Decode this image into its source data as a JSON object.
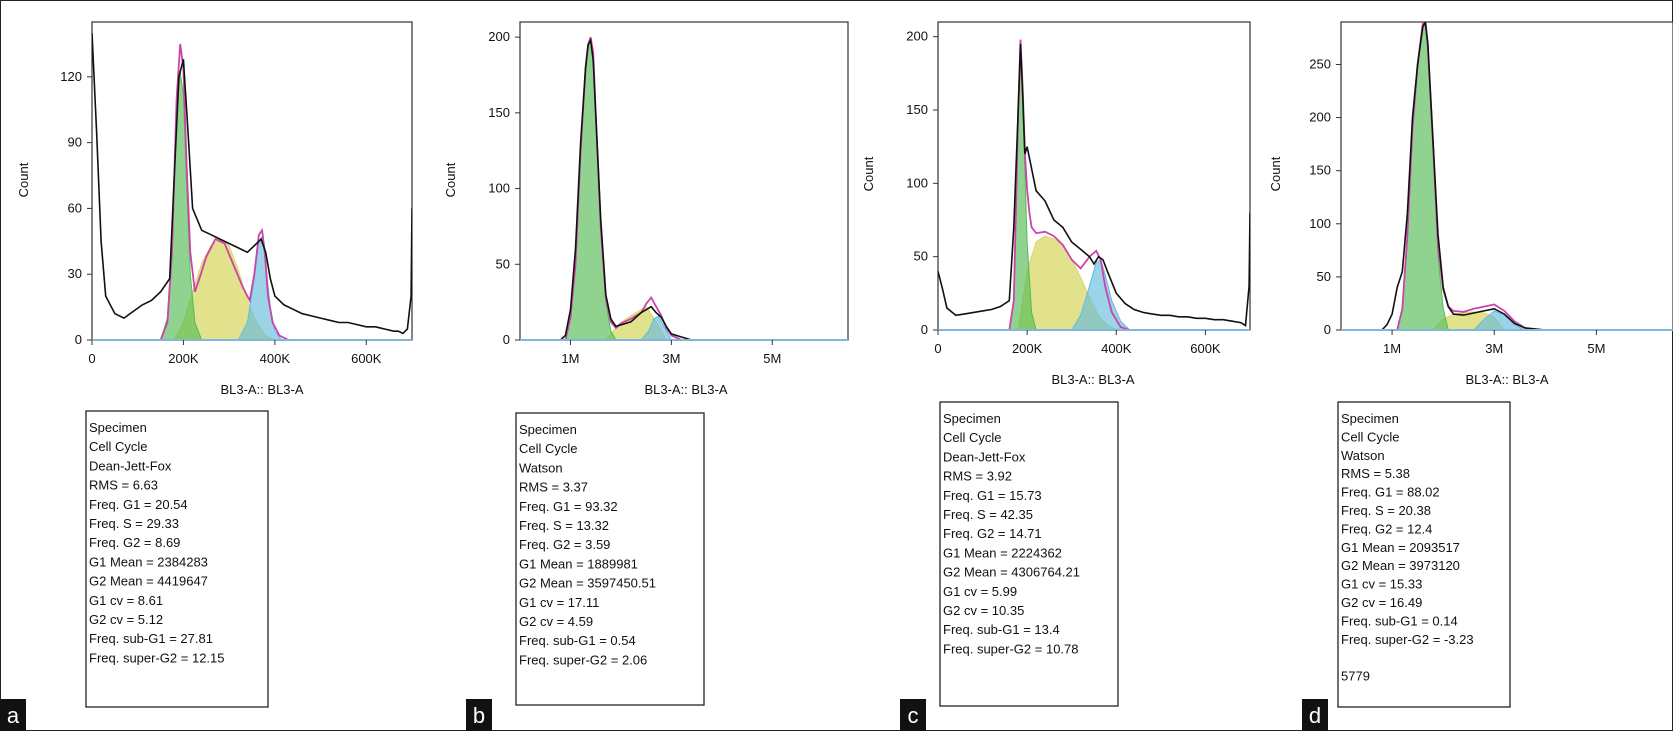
{
  "chart_data": [
    {
      "type": "area",
      "panel_label": "a",
      "xlabel": "BL3-A:: BL3-A",
      "ylabel": "Count",
      "xlim": [
        0,
        700000
      ],
      "ylim": [
        0,
        145
      ],
      "x_ticks": [
        0,
        200000,
        400000,
        600000
      ],
      "x_tick_labels": [
        "0",
        "200K",
        "400K",
        "600K"
      ],
      "y_ticks": [
        0,
        30,
        60,
        90,
        120
      ],
      "y_tick_labels": [
        "0",
        "30",
        "60",
        "90",
        "120"
      ],
      "series": [
        {
          "name": "data",
          "color": "#111111",
          "x": [
            0,
            10000,
            20000,
            30000,
            50000,
            70000,
            90000,
            110000,
            130000,
            150000,
            170000,
            180000,
            190000,
            200000,
            210000,
            220000,
            240000,
            260000,
            280000,
            300000,
            320000,
            340000,
            360000,
            370000,
            380000,
            390000,
            400000,
            420000,
            440000,
            460000,
            480000,
            500000,
            520000,
            540000,
            560000,
            580000,
            600000,
            620000,
            640000,
            660000,
            670000,
            680000,
            690000,
            698000,
            700000
          ],
          "values": [
            140,
            95,
            45,
            20,
            12,
            10,
            13,
            16,
            18,
            22,
            28,
            75,
            120,
            128,
            95,
            60,
            50,
            48,
            46,
            44,
            42,
            40,
            44,
            46,
            40,
            28,
            20,
            16,
            14,
            12,
            11,
            10,
            9,
            8,
            8,
            7,
            6,
            6,
            5,
            4,
            4,
            3,
            5,
            20,
            60
          ]
        },
        {
          "name": "model",
          "color": "#cc44aa",
          "x": [
            150000,
            165000,
            175000,
            185000,
            193000,
            200000,
            207000,
            215000,
            225000,
            235000,
            250000,
            270000,
            290000,
            310000,
            330000,
            345000,
            355000,
            365000,
            372000,
            378000,
            385000,
            395000,
            410000,
            430000
          ],
          "values": [
            0,
            8,
            40,
            110,
            135,
            124,
            80,
            40,
            22,
            28,
            38,
            46,
            44,
            34,
            24,
            18,
            30,
            48,
            50,
            40,
            20,
            8,
            2,
            0
          ]
        },
        {
          "name": "G1",
          "color": "#55bb55",
          "x": [
            150000,
            165000,
            175000,
            185000,
            193000,
            200000,
            207000,
            215000,
            225000,
            240000
          ],
          "values": [
            0,
            10,
            45,
            105,
            122,
            112,
            70,
            30,
            8,
            0
          ]
        },
        {
          "name": "S",
          "color": "#d9d866",
          "x": [
            180000,
            200000,
            220000,
            240000,
            260000,
            280000,
            300000,
            320000,
            340000,
            360000,
            380000,
            400000
          ],
          "values": [
            0,
            8,
            22,
            35,
            43,
            46,
            43,
            32,
            18,
            8,
            2,
            0
          ]
        },
        {
          "name": "G2",
          "color": "#66bbdd",
          "x": [
            320000,
            340000,
            355000,
            365000,
            372000,
            380000,
            390000,
            400000,
            415000
          ],
          "values": [
            0,
            8,
            28,
            45,
            47,
            35,
            15,
            4,
            0
          ]
        }
      ],
      "stats": [
        "Specimen",
        "Cell Cycle",
        "Dean-Jett-Fox",
        "RMS  = 6.63",
        "Freq. G1  = 20.54",
        "Freq. S  = 29.33",
        "Freq. G2  = 8.69",
        "G1 Mean  = 2384283",
        "G2 Mean  = 4419647",
        "G1 cv  = 8.61",
        "G2 cv  = 5.12",
        "Freq. sub-G1  = 27.81",
        "Freq. super-G2 = 12.15"
      ]
    },
    {
      "type": "area",
      "panel_label": "b",
      "xlabel": "BL3-A:: BL3-A",
      "ylabel": "Count",
      "xlim": [
        0,
        6500000
      ],
      "ylim": [
        0,
        210
      ],
      "x_ticks": [
        1000000,
        3000000,
        5000000
      ],
      "x_tick_labels": [
        "1M",
        "3M",
        "5M"
      ],
      "y_ticks": [
        0,
        50,
        100,
        150,
        200
      ],
      "y_tick_labels": [
        "0",
        "50",
        "100",
        "150",
        "200"
      ],
      "series": [
        {
          "name": "data",
          "color": "#111111",
          "x": [
            0,
            800000,
            900000,
            1000000,
            1100000,
            1200000,
            1300000,
            1350000,
            1400000,
            1450000,
            1500000,
            1600000,
            1700000,
            1800000,
            1900000,
            2000000,
            2200000,
            2400000,
            2600000,
            2700000,
            2800000,
            2900000,
            3000000,
            3200000,
            3400000,
            6500000
          ],
          "values": [
            0,
            0,
            3,
            20,
            60,
            130,
            180,
            195,
            198,
            185,
            150,
            80,
            30,
            14,
            9,
            10,
            12,
            18,
            22,
            18,
            15,
            9,
            4,
            2,
            0,
            0
          ]
        },
        {
          "name": "model",
          "color": "#cc44aa",
          "x": [
            900000,
            1000000,
            1100000,
            1200000,
            1300000,
            1350000,
            1400000,
            1450000,
            1500000,
            1600000,
            1700000,
            1800000,
            1900000,
            2000000,
            2200000,
            2400000,
            2500000,
            2600000,
            2700000,
            2800000,
            2900000,
            3000000,
            3200000
          ],
          "values": [
            0,
            15,
            50,
            125,
            180,
            195,
            200,
            190,
            150,
            75,
            28,
            12,
            8,
            11,
            14,
            18,
            24,
            28,
            22,
            16,
            8,
            3,
            0
          ]
        },
        {
          "name": "G1",
          "color": "#55bb55",
          "x": [
            900000,
            1000000,
            1100000,
            1200000,
            1300000,
            1350000,
            1400000,
            1450000,
            1500000,
            1600000,
            1700000,
            1800000,
            1900000
          ],
          "values": [
            0,
            14,
            48,
            122,
            178,
            193,
            198,
            188,
            148,
            72,
            25,
            6,
            0
          ]
        },
        {
          "name": "S",
          "color": "#d9d866",
          "x": [
            1700000,
            1900000,
            2100000,
            2300000,
            2500000,
            2700000,
            2900000
          ],
          "values": [
            0,
            8,
            14,
            18,
            22,
            12,
            0
          ]
        },
        {
          "name": "G2",
          "color": "#66bbdd",
          "x": [
            2400000,
            2550000,
            2650000,
            2750000,
            2850000,
            3000000
          ],
          "values": [
            0,
            6,
            14,
            16,
            9,
            0
          ]
        }
      ],
      "stats": [
        "Specimen",
        "Cell Cycle",
        "Watson",
        "RMS  = 3.37",
        "Freq. G1  = 93.32",
        "Freq. S = 13.32",
        "Freq. G2  = 3.59",
        "G1 Mean  = 1889981",
        "G2 Mean  = 3597450.51",
        "G1 cv  = 17.11",
        "G2 cv  = 4.59",
        "Freq. sub-G1  = 0.54",
        "Freq. super-G2 = 2.06"
      ]
    },
    {
      "type": "area",
      "panel_label": "c",
      "xlabel": "BL3-A:: BL3-A",
      "ylabel": "Count",
      "xlim": [
        0,
        700000
      ],
      "ylim": [
        0,
        210
      ],
      "x_ticks": [
        0,
        200000,
        400000,
        600000
      ],
      "x_tick_labels": [
        "0",
        "200K",
        "400K",
        "600K"
      ],
      "y_ticks": [
        0,
        50,
        100,
        150,
        200
      ],
      "y_tick_labels": [
        "0",
        "50",
        "100",
        "150",
        "200"
      ],
      "series": [
        {
          "name": "data",
          "color": "#111111",
          "x": [
            0,
            10000,
            20000,
            40000,
            60000,
            80000,
            100000,
            120000,
            140000,
            160000,
            170000,
            180000,
            185000,
            190000,
            195000,
            200000,
            210000,
            220000,
            240000,
            260000,
            280000,
            300000,
            320000,
            340000,
            350000,
            360000,
            370000,
            380000,
            400000,
            420000,
            440000,
            460000,
            480000,
            500000,
            520000,
            540000,
            560000,
            580000,
            600000,
            620000,
            640000,
            660000,
            680000,
            690000,
            698000,
            700000
          ],
          "values": [
            40,
            28,
            15,
            10,
            11,
            12,
            13,
            14,
            16,
            20,
            70,
            150,
            195,
            160,
            120,
            125,
            110,
            95,
            88,
            75,
            70,
            60,
            55,
            50,
            45,
            50,
            48,
            40,
            25,
            18,
            14,
            12,
            11,
            10,
            10,
            9,
            9,
            8,
            8,
            7,
            7,
            6,
            5,
            3,
            30,
            80
          ]
        },
        {
          "name": "model",
          "color": "#cc44aa",
          "x": [
            160000,
            170000,
            180000,
            185000,
            190000,
            195000,
            200000,
            205000,
            210000,
            220000,
            240000,
            260000,
            280000,
            300000,
            320000,
            340000,
            355000,
            365000,
            375000,
            390000,
            410000,
            430000
          ],
          "values": [
            0,
            20,
            150,
            198,
            165,
            120,
            96,
            80,
            70,
            66,
            67,
            64,
            58,
            48,
            42,
            50,
            54,
            48,
            30,
            12,
            2,
            0
          ]
        },
        {
          "name": "G1",
          "color": "#55bb55",
          "x": [
            160000,
            170000,
            180000,
            185000,
            190000,
            195000,
            200000,
            210000,
            220000
          ],
          "values": [
            0,
            20,
            145,
            190,
            158,
            110,
            60,
            12,
            0
          ]
        },
        {
          "name": "S",
          "color": "#d9d866",
          "x": [
            180000,
            200000,
            220000,
            240000,
            260000,
            280000,
            300000,
            320000,
            340000,
            360000,
            380000,
            400000
          ],
          "values": [
            0,
            40,
            60,
            64,
            62,
            58,
            48,
            36,
            22,
            10,
            3,
            0
          ]
        },
        {
          "name": "G2",
          "color": "#66bbdd",
          "x": [
            300000,
            320000,
            340000,
            355000,
            365000,
            375000,
            390000,
            410000,
            430000
          ],
          "values": [
            0,
            10,
            30,
            46,
            48,
            38,
            20,
            6,
            0
          ]
        }
      ],
      "stats": [
        "Specimen",
        "Cell Cycle",
        "Dean-Jett-Fox",
        "RMS  = 3.92",
        "Freq. G1  = 15.73",
        "Freq. S  = 42.35",
        "Freq. G2  = 14.71",
        "G1 Mean  = 2224362",
        "G2 Mean  = 4306764.21",
        "G1 cv  = 5.99",
        "G2 cv  = 10.35",
        "Freq. sub-G1  = 13.4",
        "Freq. super-G2  = 10.78"
      ]
    },
    {
      "type": "area",
      "panel_label": "d",
      "xlabel": "BL3-A:: BL3-A",
      "ylabel": "Count",
      "xlim": [
        0,
        6500000
      ],
      "ylim": [
        0,
        290
      ],
      "x_ticks": [
        1000000,
        3000000,
        5000000
      ],
      "x_tick_labels": [
        "1M",
        "3M",
        "5M"
      ],
      "y_ticks": [
        0,
        50,
        100,
        150,
        200,
        250
      ],
      "y_tick_labels": [
        "0",
        "50",
        "100",
        "150",
        "200",
        "250"
      ],
      "series": [
        {
          "name": "data",
          "color": "#111111",
          "x": [
            800000,
            900000,
            1000000,
            1100000,
            1200000,
            1300000,
            1400000,
            1500000,
            1600000,
            1650000,
            1700000,
            1800000,
            1900000,
            2000000,
            2100000,
            2200000,
            2400000,
            2600000,
            2800000,
            3000000,
            3200000,
            3400000,
            3600000,
            3800000,
            4000000,
            6500000
          ],
          "values": [
            0,
            5,
            15,
            40,
            55,
            110,
            200,
            250,
            285,
            290,
            270,
            180,
            90,
            40,
            22,
            15,
            14,
            16,
            18,
            20,
            15,
            6,
            2,
            1,
            0,
            0
          ]
        },
        {
          "name": "model",
          "color": "#cc44aa",
          "x": [
            1100000,
            1200000,
            1300000,
            1400000,
            1500000,
            1600000,
            1650000,
            1700000,
            1800000,
            1900000,
            2000000,
            2100000,
            2200000,
            2400000,
            2600000,
            2800000,
            3000000,
            3200000,
            3400000,
            3600000,
            3800000
          ],
          "values": [
            0,
            20,
            90,
            190,
            250,
            288,
            292,
            268,
            178,
            80,
            38,
            22,
            18,
            17,
            20,
            22,
            24,
            18,
            8,
            2,
            0
          ]
        },
        {
          "name": "G1",
          "color": "#55bb55",
          "x": [
            1100000,
            1200000,
            1300000,
            1400000,
            1500000,
            1600000,
            1650000,
            1700000,
            1800000,
            1900000,
            2000000,
            2100000
          ],
          "values": [
            0,
            18,
            85,
            185,
            245,
            285,
            288,
            262,
            170,
            70,
            20,
            0
          ]
        },
        {
          "name": "S",
          "color": "#d9d866",
          "x": [
            1800000,
            2000000,
            2200000,
            2400000,
            2600000,
            2800000,
            3000000,
            3200000
          ],
          "values": [
            0,
            10,
            15,
            16,
            17,
            16,
            12,
            0
          ]
        },
        {
          "name": "G2",
          "color": "#66bbdd",
          "x": [
            2600000,
            2800000,
            3000000,
            3200000,
            3400000,
            3600000
          ],
          "values": [
            0,
            10,
            18,
            14,
            5,
            0
          ]
        }
      ],
      "stats": [
        "Specimen",
        "Cell Cycle",
        "Watson",
        "RMS  = 5.38",
        "Freq. G1  = 88.02",
        "Freq. S  = 20.38",
        "Freq. G2  = 12.4",
        "G1 Mean  = 2093517",
        "G2 Mean  = 3973120",
        "G1 cv  = 15.33",
        "G2 cv  = 16.49",
        "Freq. sub-G1  = 0.14",
        "Freq. super-G2  = -3.23",
        "",
        "5779"
      ]
    }
  ]
}
